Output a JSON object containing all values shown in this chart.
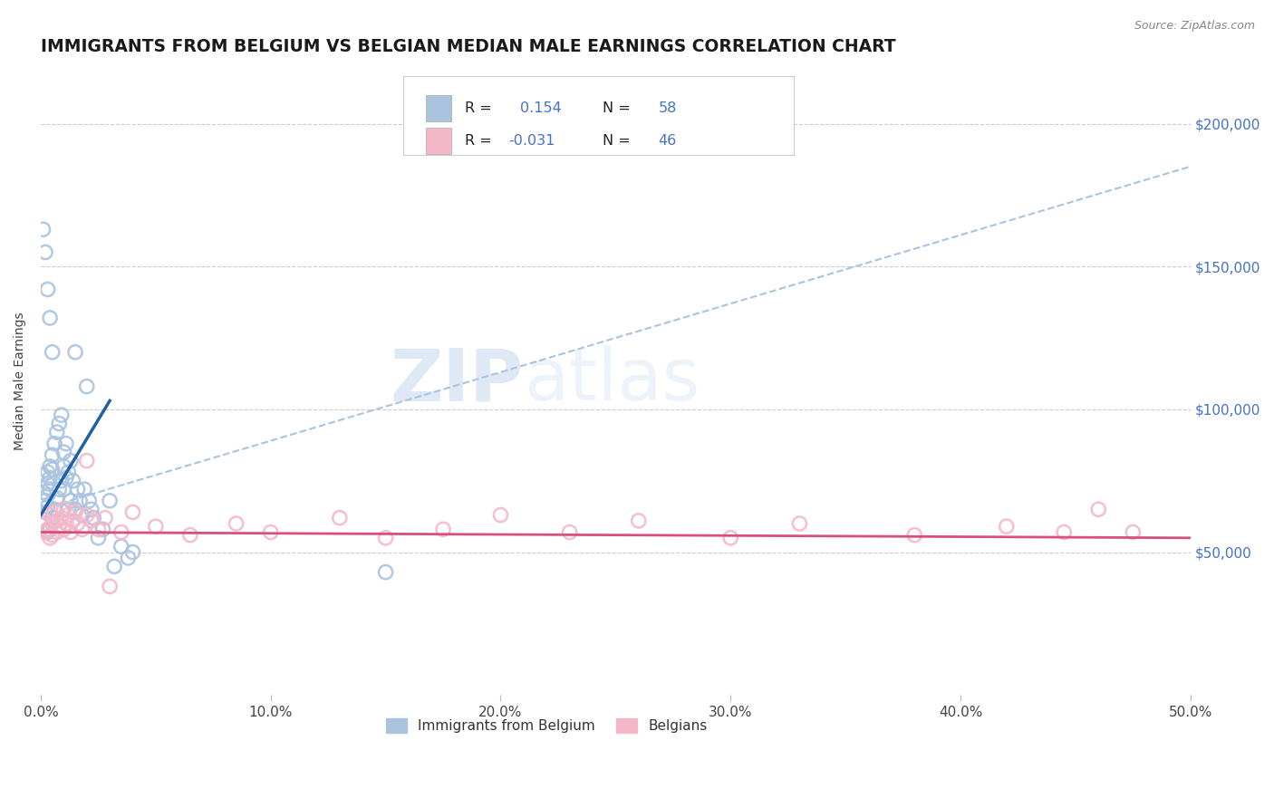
{
  "title": "IMMIGRANTS FROM BELGIUM VS BELGIAN MEDIAN MALE EARNINGS CORRELATION CHART",
  "source_text": "Source: ZipAtlas.com",
  "ylabel": "Median Male Earnings",
  "xlim": [
    0.0,
    0.5
  ],
  "ylim": [
    0,
    220000
  ],
  "xtick_labels": [
    "0.0%",
    "10.0%",
    "20.0%",
    "30.0%",
    "40.0%",
    "50.0%"
  ],
  "xtick_values": [
    0.0,
    0.1,
    0.2,
    0.3,
    0.4,
    0.5
  ],
  "ytick_labels": [
    "$50,000",
    "$100,000",
    "$150,000",
    "$200,000"
  ],
  "ytick_values": [
    50000,
    100000,
    150000,
    200000
  ],
  "blue_color": "#aac4e0",
  "pink_color": "#f4b8c8",
  "blue_line_color": "#1f5fa6",
  "pink_line_color": "#d94f7c",
  "dashed_line_color": "#aac4e0",
  "right_ytick_color": "#4472c4",
  "legend_label_blue": "Immigrants from Belgium",
  "legend_label_pink": "Belgians",
  "watermark_zip": "ZIP",
  "watermark_atlas": "atlas",
  "title_color": "#1a1a1a",
  "title_fontsize": 13.5,
  "blue_line_x": [
    0.0,
    0.03
  ],
  "blue_line_y": [
    63000,
    103000
  ],
  "pink_line_x": [
    0.0,
    0.5
  ],
  "pink_line_y": [
    57000,
    55000
  ],
  "dash_line_x": [
    0.0,
    0.5
  ],
  "dash_line_y": [
    65000,
    185000
  ],
  "blue_scatter_x": [
    0.001,
    0.001,
    0.002,
    0.002,
    0.002,
    0.003,
    0.003,
    0.003,
    0.003,
    0.003,
    0.004,
    0.004,
    0.004,
    0.004,
    0.005,
    0.005,
    0.005,
    0.006,
    0.006,
    0.007,
    0.007,
    0.008,
    0.008,
    0.009,
    0.009,
    0.01,
    0.01,
    0.01,
    0.011,
    0.011,
    0.012,
    0.012,
    0.013,
    0.013,
    0.014,
    0.015,
    0.015,
    0.016,
    0.017,
    0.018,
    0.019,
    0.02,
    0.021,
    0.022,
    0.023,
    0.025,
    0.027,
    0.03,
    0.032,
    0.035,
    0.038,
    0.04,
    0.15,
    0.001,
    0.002,
    0.003,
    0.004,
    0.005
  ],
  "blue_scatter_y": [
    77000,
    71000,
    68000,
    64000,
    60000,
    78000,
    74000,
    70000,
    66000,
    57000,
    80000,
    76000,
    72000,
    58000,
    84000,
    79000,
    62000,
    88000,
    65000,
    92000,
    69000,
    95000,
    72000,
    98000,
    75000,
    85000,
    80000,
    72000,
    88000,
    76000,
    78000,
    65000,
    82000,
    68000,
    75000,
    120000,
    65000,
    72000,
    68000,
    63000,
    72000,
    108000,
    68000,
    65000,
    62000,
    55000,
    58000,
    68000,
    45000,
    52000,
    48000,
    50000,
    43000,
    163000,
    155000,
    142000,
    132000,
    120000
  ],
  "pink_scatter_x": [
    0.001,
    0.002,
    0.003,
    0.004,
    0.004,
    0.005,
    0.005,
    0.006,
    0.007,
    0.007,
    0.008,
    0.009,
    0.01,
    0.01,
    0.011,
    0.012,
    0.013,
    0.014,
    0.015,
    0.016,
    0.018,
    0.02,
    0.022,
    0.025,
    0.028,
    0.035,
    0.04,
    0.05,
    0.065,
    0.085,
    0.1,
    0.13,
    0.15,
    0.175,
    0.2,
    0.23,
    0.26,
    0.3,
    0.33,
    0.38,
    0.42,
    0.445,
    0.46,
    0.475,
    0.02,
    0.03
  ],
  "pink_scatter_y": [
    60000,
    57000,
    58000,
    55000,
    63000,
    60000,
    56000,
    64000,
    61000,
    57000,
    59000,
    62000,
    58000,
    65000,
    60000,
    63000,
    57000,
    61000,
    64000,
    60000,
    58000,
    63000,
    61000,
    58000,
    62000,
    57000,
    64000,
    59000,
    56000,
    60000,
    57000,
    62000,
    55000,
    58000,
    63000,
    57000,
    61000,
    55000,
    60000,
    56000,
    59000,
    57000,
    65000,
    57000,
    82000,
    38000
  ]
}
